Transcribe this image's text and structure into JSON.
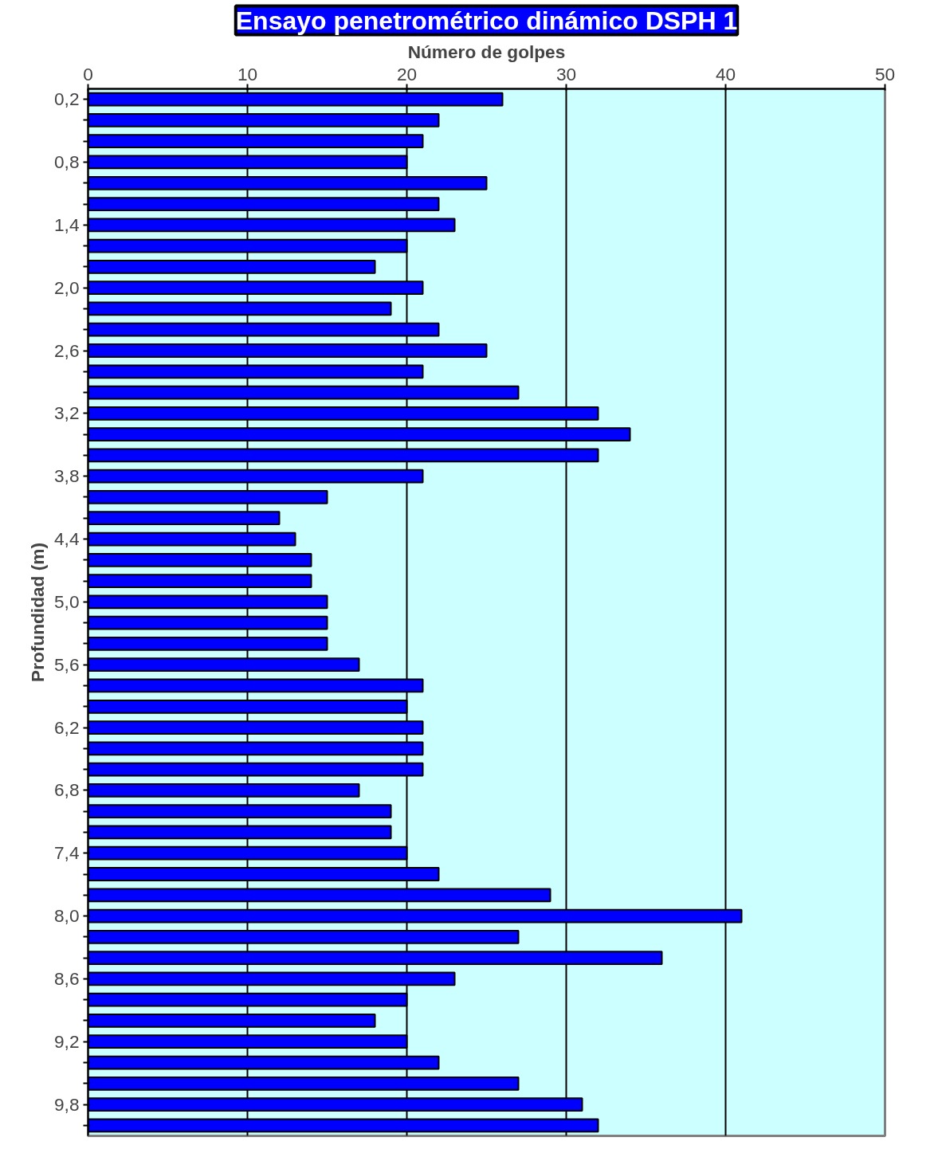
{
  "chart_data": {
    "type": "bar",
    "orientation": "horizontal",
    "title": "Ensayo penetrométrico dinámico DSPH 1",
    "xlabel": "Número de golpes",
    "ylabel": "Profundidad (m)",
    "categories": [
      "0,2",
      null,
      null,
      "0,8",
      null,
      null,
      "1,4",
      null,
      null,
      "2,0",
      null,
      null,
      "2,6",
      null,
      null,
      "3,2",
      null,
      null,
      "3,8",
      null,
      null,
      "4,4",
      null,
      null,
      "5,0",
      null,
      null,
      "5,6",
      null,
      null,
      "6,2",
      null,
      null,
      "6,8",
      null,
      null,
      "7,4",
      null,
      null,
      "8,0",
      null,
      null,
      "8,6",
      null,
      null,
      "9,2",
      null,
      null,
      "9,8",
      null
    ],
    "values": [
      26,
      22,
      21,
      20,
      25,
      22,
      23,
      20,
      18,
      21,
      19,
      22,
      25,
      21,
      27,
      32,
      34,
      32,
      21,
      15,
      12,
      13,
      14,
      14,
      15,
      15,
      15,
      17,
      21,
      20,
      21,
      21,
      21,
      17,
      19,
      19,
      20,
      22,
      29,
      41,
      27,
      36,
      23,
      20,
      18,
      20,
      22,
      27,
      31,
      32
    ],
    "color": "#0000ff",
    "xlim": [
      0,
      50
    ],
    "xticks": [
      0,
      10,
      20,
      30,
      40,
      50
    ],
    "grid": "x"
  }
}
